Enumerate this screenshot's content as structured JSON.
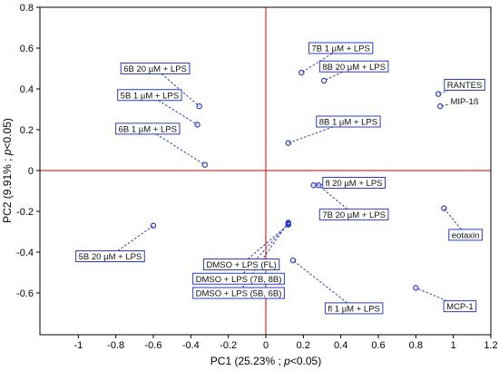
{
  "chart_data": {
    "type": "scatter",
    "xlabel_main": "PC1 (25.23% ; ",
    "xlabel_p": "p",
    "xlabel_tail": "<0.05)",
    "ylabel_main": "PC2 (9.91% ; ",
    "ylabel_p": "p",
    "ylabel_tail": "<0.05)",
    "xlim": [
      -1.2,
      1.2
    ],
    "ylim": [
      -0.8,
      0.8
    ],
    "xticks": [
      -1,
      -0.8,
      -0.6,
      -0.4,
      -0.2,
      0,
      0.2,
      0.4,
      0.6,
      0.8,
      1,
      1.2
    ],
    "xtick_labels": [
      "-1",
      "-0.8",
      "-0.6",
      "-0.4",
      "-0.2",
      "0",
      "0.2",
      "0.4",
      "0.6",
      "0.8",
      "1",
      "1.2"
    ],
    "yticks": [
      0.8,
      0.6,
      0.4,
      0.2,
      0,
      -0.2,
      -0.4,
      -0.6
    ],
    "ytick_labels": [
      "0.8",
      "0.6",
      "0.4",
      "0.2",
      "0",
      "-0.2",
      "-0.4",
      "-0.6"
    ],
    "colors": {
      "points": "#2b3cc2",
      "reference_lines": "#d40000"
    },
    "points": [
      {
        "label": "RANTES",
        "x": 0.92,
        "y": 0.375,
        "lx": 1.06,
        "ly": 0.42,
        "boxed": true
      },
      {
        "label": "MIP-1ß",
        "x": 0.93,
        "y": 0.315,
        "lx": 1.06,
        "ly": 0.34,
        "boxed": false
      },
      {
        "label": "7B 1 µM + LPS",
        "x": 0.19,
        "y": 0.48,
        "lx": 0.4,
        "ly": 0.6,
        "boxed": true
      },
      {
        "label": "8B 20 µM + LPS",
        "x": 0.31,
        "y": 0.44,
        "lx": 0.47,
        "ly": 0.51,
        "boxed": true
      },
      {
        "label": "8B 1 µM + LPS",
        "x": 0.12,
        "y": 0.135,
        "lx": 0.44,
        "ly": 0.24,
        "boxed": true
      },
      {
        "label": "6B 20 µM + LPS",
        "x": -0.355,
        "y": 0.315,
        "lx": -0.59,
        "ly": 0.5,
        "boxed": true
      },
      {
        "label": "5B 1 µM + LPS",
        "x": -0.365,
        "y": 0.225,
        "lx": -0.62,
        "ly": 0.37,
        "boxed": true
      },
      {
        "label": "6B 1 µM + LPS",
        "x": -0.325,
        "y": 0.028,
        "lx": -0.63,
        "ly": 0.205,
        "boxed": true
      },
      {
        "label": "fl 20 µM + LPS",
        "x": 0.255,
        "y": -0.072,
        "lx": 0.47,
        "ly": -0.06,
        "boxed": true
      },
      {
        "label": "7B 20 µM + LPS",
        "x": 0.28,
        "y": -0.072,
        "lx": 0.47,
        "ly": -0.215,
        "boxed": true
      },
      {
        "label": "eotaxin",
        "x": 0.95,
        "y": -0.185,
        "lx": 1.065,
        "ly": -0.315,
        "boxed": true
      },
      {
        "label": "5B 20 µM + LPS",
        "x": -0.6,
        "y": -0.27,
        "lx": -0.83,
        "ly": -0.42,
        "boxed": true
      },
      {
        "label": "DMSO + LPS (FL)",
        "x": 0.12,
        "y": -0.265,
        "lx": -0.13,
        "ly": -0.46,
        "boxed": true
      },
      {
        "label": "DMSO + LPS (7B, 8B)",
        "x": 0.12,
        "y": -0.26,
        "lx": -0.145,
        "ly": -0.53,
        "boxed": true
      },
      {
        "label": "DMSO + LPS (5B, 6B)",
        "x": 0.12,
        "y": -0.255,
        "lx": -0.145,
        "ly": -0.6,
        "boxed": true
      },
      {
        "label": "fl 1 µM + LPS",
        "x": 0.145,
        "y": -0.44,
        "lx": 0.47,
        "ly": -0.675,
        "boxed": true
      },
      {
        "label": "MCP-1",
        "x": 0.8,
        "y": -0.575,
        "lx": 1.035,
        "ly": -0.665,
        "boxed": true
      }
    ]
  }
}
